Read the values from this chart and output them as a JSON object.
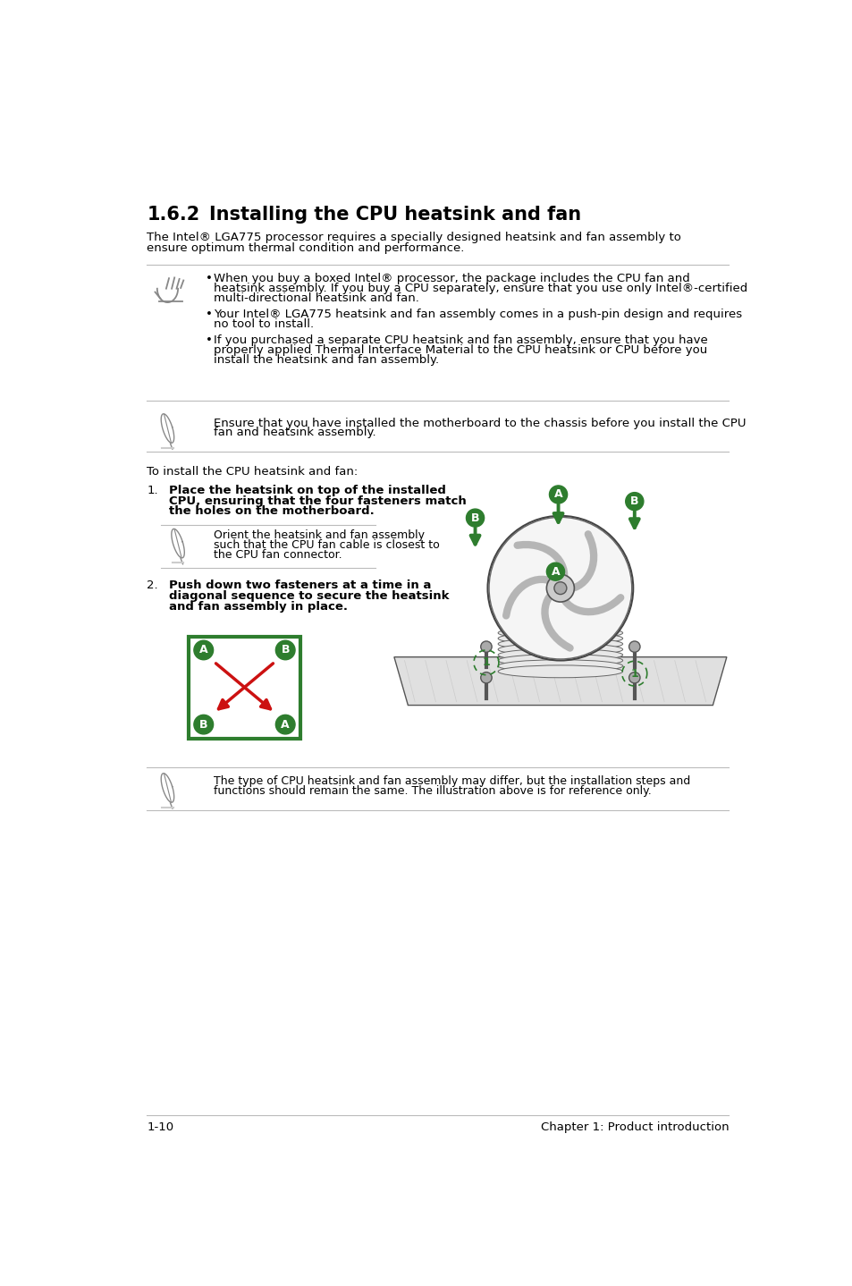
{
  "bg_color": "#ffffff",
  "section_number": "1.6.2",
  "section_title": "Installing the CPU heatsink and fan",
  "intro_line1": "The Intel® LGA775 processor requires a specially designed heatsink and fan assembly to",
  "intro_line2": "ensure optimum thermal condition and performance.",
  "bullet1_line1": "When you buy a boxed Intel® processor, the package includes the CPU fan and",
  "bullet1_line2": "heatsink assembly. If you buy a CPU separately, ensure that you use only Intel®-certified",
  "bullet1_line3": "multi-directional heatsink and fan.",
  "bullet2_line1": "Your Intel® LGA775 heatsink and fan assembly comes in a push-pin design and requires",
  "bullet2_line2": "no tool to install.",
  "bullet3_line1": "If you purchased a separate CPU heatsink and fan assembly, ensure that you have",
  "bullet3_line2": "properly applied Thermal Interface Material to the CPU heatsink or CPU before you",
  "bullet3_line3": "install the heatsink and fan assembly.",
  "note2_line1": "Ensure that you have installed the motherboard to the chassis before you install the CPU",
  "note2_line2": "fan and heatsink assembly.",
  "to_install": "To install the CPU heatsink and fan:",
  "step1_line1": "Place the heatsink on top of the installed",
  "step1_line2": "CPU, ensuring that the four fasteners match",
  "step1_line3": "the holes on the motherboard.",
  "step1note_line1": "Orient the heatsink and fan assembly",
  "step1note_line2": "such that the CPU fan cable is closest to",
  "step1note_line3": "the CPU fan connector.",
  "step2_line1": "Push down two fasteners at a time in a",
  "step2_line2": "diagonal sequence to secure the heatsink",
  "step2_line3": "and fan assembly in place.",
  "final_line1": "The type of CPU heatsink and fan assembly may differ, but the installation steps and",
  "final_line2": "functions should remain the same. The illustration above is for reference only.",
  "footer_left": "1-10",
  "footer_right": "Chapter 1: Product introduction",
  "green": "#2e7d2e",
  "red": "#cc1111",
  "gray_line": "#bbbbbb",
  "black": "#000000",
  "icon_gray": "#888888",
  "font_size_title": 15,
  "font_size_body": 9.5,
  "font_size_small": 9,
  "lm": 58,
  "rm": 898,
  "text_indent": 155
}
